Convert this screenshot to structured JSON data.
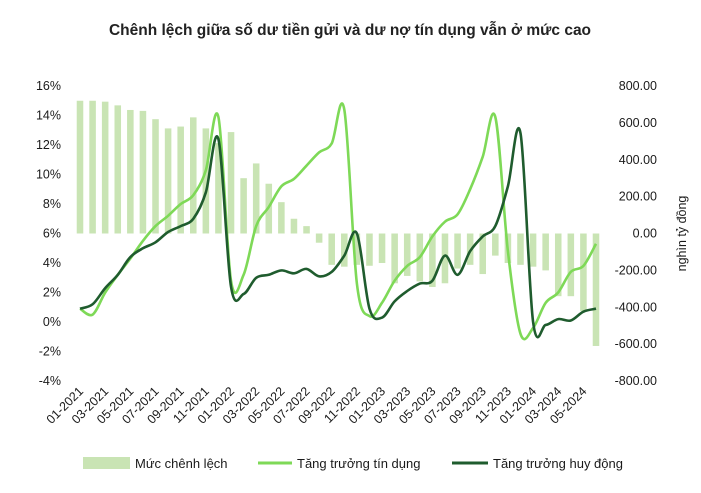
{
  "chart_data": {
    "type": "bar+line",
    "title": "Chênh lệch giữa số dư tiền gửi và dư nợ tín dụng vẫn ở mức cao",
    "ylabel": "",
    "y2label": "nghìn tỷ đồng",
    "ylim": [
      -4,
      16
    ],
    "y_ticks": [
      "-4%",
      "-2%",
      "0%",
      "2%",
      "4%",
      "6%",
      "8%",
      "10%",
      "12%",
      "14%",
      "16%"
    ],
    "y2lim": [
      -800,
      800
    ],
    "y2_ticks": [
      "-800.00",
      "-600.00",
      "-400.00",
      "-200.00",
      "0.00",
      "200.00",
      "400.00",
      "600.00",
      "800.00"
    ],
    "x_ticks": [
      "01-2021",
      "03-2021",
      "05-2021",
      "07-2021",
      "09-2021",
      "11-2021",
      "01-2022",
      "03-2022",
      "05-2022",
      "07-2022",
      "09-2022",
      "11-2022",
      "01-2023",
      "03-2023",
      "05-2023",
      "07-2023",
      "09-2023",
      "11-2023",
      "01-2024",
      "03-2024",
      "05-2024"
    ],
    "months": [
      "01-2021",
      "02-2021",
      "03-2021",
      "04-2021",
      "05-2021",
      "06-2021",
      "07-2021",
      "08-2021",
      "09-2021",
      "10-2021",
      "11-2021",
      "12-2021",
      "01-2022",
      "02-2022",
      "03-2022",
      "04-2022",
      "05-2022",
      "06-2022",
      "07-2022",
      "08-2022",
      "09-2022",
      "10-2022",
      "11-2022",
      "12-2022",
      "01-2023",
      "02-2023",
      "03-2023",
      "04-2023",
      "05-2023",
      "06-2023",
      "07-2023",
      "08-2023",
      "09-2023",
      "10-2023",
      "11-2023",
      "12-2023",
      "01-2024",
      "02-2024",
      "03-2024",
      "04-2024",
      "05-2024",
      "06-2024"
    ],
    "series": [
      {
        "name": "Mức chênh lệch",
        "axis": "right",
        "kind": "bar",
        "color": "#c9e4b4",
        "values": [
          720,
          720,
          715,
          695,
          670,
          665,
          620,
          570,
          580,
          630,
          570,
          490,
          550,
          300,
          380,
          270,
          170,
          80,
          40,
          -50,
          -170,
          -180,
          -170,
          -175,
          -160,
          -270,
          -230,
          -260,
          -290,
          -270,
          -190,
          -170,
          -220,
          -120,
          -160,
          -170,
          -180,
          -200,
          -340,
          -340,
          -420,
          -610
        ]
      },
      {
        "name": "Tăng trưởng tín dụng",
        "axis": "left",
        "kind": "line",
        "color": "#7ed957",
        "values": [
          0.9,
          0.5,
          2.0,
          3.2,
          4.3,
          5.5,
          6.5,
          7.2,
          8.0,
          8.6,
          10.3,
          13.9,
          2.8,
          3.2,
          6.5,
          7.8,
          9.2,
          9.7,
          10.6,
          11.5,
          12.1,
          14.4,
          2.6,
          0.4,
          1.3,
          2.8,
          3.8,
          4.4,
          5.8,
          6.8,
          7.3,
          9.0,
          11.2,
          13.9,
          4.8,
          -0.8,
          -0.4,
          1.3,
          2.0,
          3.4,
          3.8,
          5.3
        ]
      },
      {
        "name": "Tăng trưởng huy động",
        "axis": "left",
        "kind": "line",
        "color": "#1f5c2e",
        "values": [
          0.9,
          1.2,
          2.3,
          3.2,
          4.4,
          5.0,
          5.4,
          6.1,
          6.5,
          7.0,
          8.8,
          12.4,
          2.4,
          1.9,
          3.0,
          3.2,
          3.5,
          3.3,
          3.6,
          3.1,
          3.4,
          4.5,
          6.0,
          0.9,
          0.3,
          1.4,
          2.1,
          2.6,
          2.8,
          4.5,
          3.2,
          4.8,
          5.8,
          6.5,
          9.2,
          12.8,
          0.0,
          -0.2,
          0.2,
          0.1,
          0.7,
          0.9
        ]
      }
    ],
    "legend": [
      "Mức chênh lệch",
      "Tăng trưởng tín dụng",
      "Tăng trưởng huy động"
    ],
    "legend_position": "bottom",
    "grid": false
  }
}
